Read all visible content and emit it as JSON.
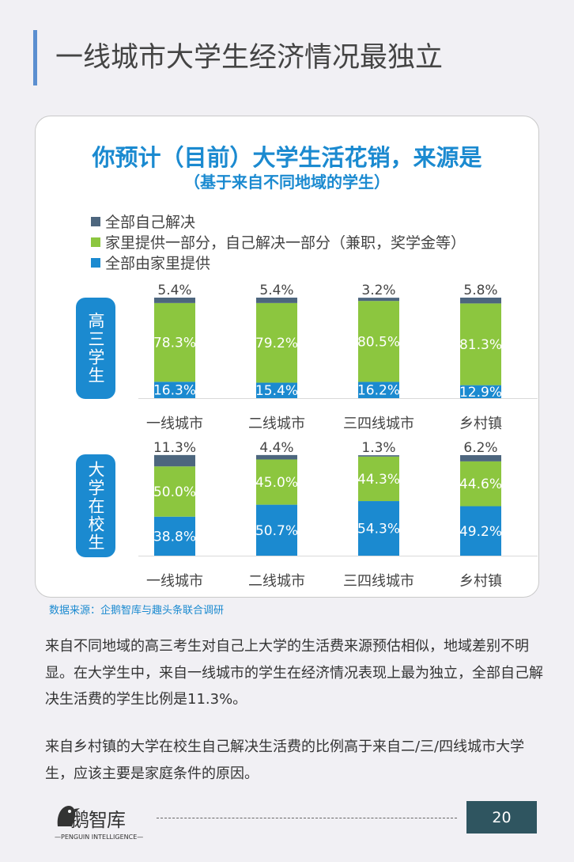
{
  "header": {
    "title": "一线城市大学生经济情况最独立"
  },
  "chart_data": {
    "type": "bar",
    "stacked": true,
    "title": "你预计（目前）大学生活花销，来源是",
    "subtitle": "（基于来自不同地域的学生）",
    "categories": [
      "一线城市",
      "二线城市",
      "三四线城市",
      "乡村镇"
    ],
    "legend": [
      "全部自己解决",
      "家里提供一部分，自己解决一部分（兼职，奖学金等）",
      "全部由家里提供"
    ],
    "legend_placement": "top-left",
    "colors": {
      "全部自己解决": "#4d667e",
      "家里提供一部分，自己解决一部分（兼职，奖学金等）": "#8cc63f",
      "全部由家里提供": "#1b8ad0"
    },
    "groups": [
      {
        "label": "高三学生",
        "series": [
          {
            "name": "全部由家里提供",
            "values": [
              16.3,
              15.4,
              16.2,
              12.9
            ],
            "labels": [
              "16.3%",
              "15.4%",
              "16.2%",
              "12.9%"
            ]
          },
          {
            "name": "家里提供一部分，自己解决一部分（兼职，奖学金等）",
            "values": [
              78.3,
              79.2,
              80.5,
              81.3
            ],
            "labels": [
              "78.3%",
              "79.2%",
              "80.5%",
              "81.3%"
            ]
          },
          {
            "name": "全部自己解决",
            "values": [
              5.4,
              5.4,
              3.2,
              5.8
            ],
            "labels": [
              "5.4%",
              "5.4%",
              "3.2%",
              "5.8%"
            ]
          }
        ]
      },
      {
        "label": "大学在校生",
        "series": [
          {
            "name": "全部由家里提供",
            "values": [
              38.8,
              50.7,
              54.3,
              49.2
            ],
            "labels": [
              "38.8%",
              "50.7%",
              "54.3%",
              "49.2%"
            ]
          },
          {
            "name": "家里提供一部分，自己解决一部分（兼职，奖学金等）",
            "values": [
              50.0,
              45.0,
              44.3,
              44.6
            ],
            "labels": [
              "50.0%",
              "45.0%",
              "44.3%",
              "44.6%"
            ]
          },
          {
            "name": "全部自己解决",
            "values": [
              11.3,
              4.4,
              1.3,
              6.2
            ],
            "labels": [
              "11.3%",
              "4.4%",
              "1.3%",
              "6.2%"
            ]
          }
        ]
      }
    ]
  },
  "source": "数据来源：企鹅智库与趣头条联合调研",
  "paragraphs": [
    "来自不同地域的高三考生对自己上大学的生活费来源预估相似，地域差别不明显。在大学生中，来自一线城市的学生在经济情况表现上最为独立，全部自己解决生活费的学生比例是11.3%。",
    "来自乡村镇的大学在校生自己解决生活费的比例高于来自二/三/四线城市大学生，应该主要是家庭条件的原因。"
  ],
  "footer": {
    "logo_text": "企鹅智库",
    "logo_sub": "PENGUIN INTELLIGENCE",
    "page": "20"
  }
}
